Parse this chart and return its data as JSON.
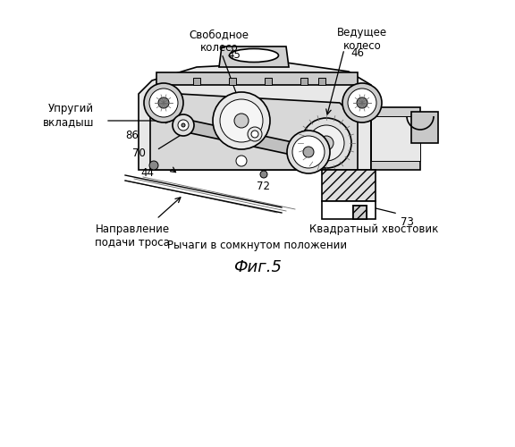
{
  "title": "Фиг.5",
  "caption": "Рычаги в сомкнутом положении",
  "labels": {
    "free_wheel": "Свободное\nколесо",
    "free_wheel_num": "45",
    "drive_wheel": "Ведущее\nколесо",
    "drive_wheel_num": "46",
    "elastic_insert": "Упругий\nвкладыш",
    "elastic_insert_num": "86",
    "lever_num1": "70",
    "lever_num2": "44",
    "direction": "Направление\nподачи троса",
    "direction_num": "72",
    "square_shank": "Квадратный хвостовик",
    "square_shank_num": "73"
  },
  "bg_color": "#ffffff",
  "line_color": "#000000",
  "figure_color": "#f0f0f0"
}
